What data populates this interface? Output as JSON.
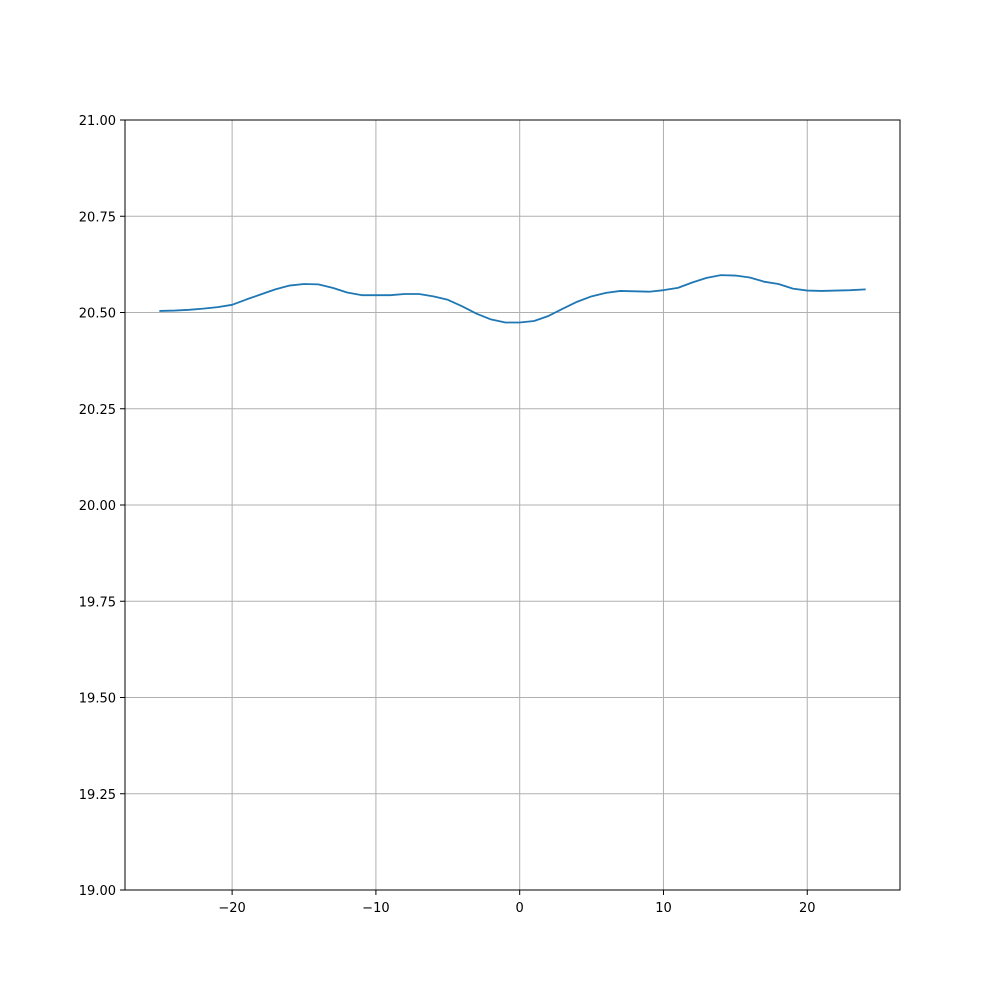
{
  "chart_data": {
    "type": "line",
    "title": "",
    "xlabel": "",
    "ylabel": "",
    "xlim": [
      -27.45,
      26.45
    ],
    "ylim": [
      19.0,
      21.0
    ],
    "grid": true,
    "legend": "none",
    "x_ticks": [
      -20,
      -10,
      0,
      10,
      20
    ],
    "x_tick_labels": [
      "−20",
      "−10",
      "0",
      "10",
      "20"
    ],
    "y_ticks": [
      19.0,
      19.25,
      19.5,
      19.75,
      20.0,
      20.25,
      20.5,
      20.75,
      21.0
    ],
    "y_tick_labels": [
      "19.00",
      "19.25",
      "19.50",
      "19.75",
      "20.00",
      "20.25",
      "20.50",
      "20.75",
      "21.00"
    ],
    "series": [
      {
        "color": "#1f77b4",
        "x": [
          -25,
          -24,
          -23,
          -22,
          -21,
          -20,
          -19,
          -18,
          -17,
          -16,
          -15,
          -14,
          -13,
          -12,
          -11,
          -10,
          -9,
          -8,
          -7,
          -6,
          -5,
          -4,
          -3,
          -2,
          -1,
          0,
          1,
          2,
          3,
          4,
          5,
          6,
          7,
          8,
          9,
          10,
          11,
          12,
          13,
          14,
          15,
          16,
          17,
          18,
          19,
          20,
          21,
          22,
          23,
          24
        ],
        "y": [
          20.504,
          20.505,
          20.507,
          20.51,
          20.514,
          20.52,
          20.534,
          20.547,
          20.56,
          20.57,
          20.574,
          20.573,
          20.564,
          20.552,
          20.545,
          20.545,
          20.545,
          20.548,
          20.548,
          20.542,
          20.533,
          20.516,
          20.497,
          20.482,
          20.474,
          20.474,
          20.478,
          20.491,
          20.51,
          20.528,
          20.542,
          20.551,
          20.556,
          20.555,
          20.554,
          20.558,
          20.564,
          20.578,
          20.59,
          20.597,
          20.596,
          20.591,
          20.58,
          20.574,
          20.562,
          20.557,
          20.556,
          20.557,
          20.558,
          20.56
        ]
      }
    ]
  }
}
